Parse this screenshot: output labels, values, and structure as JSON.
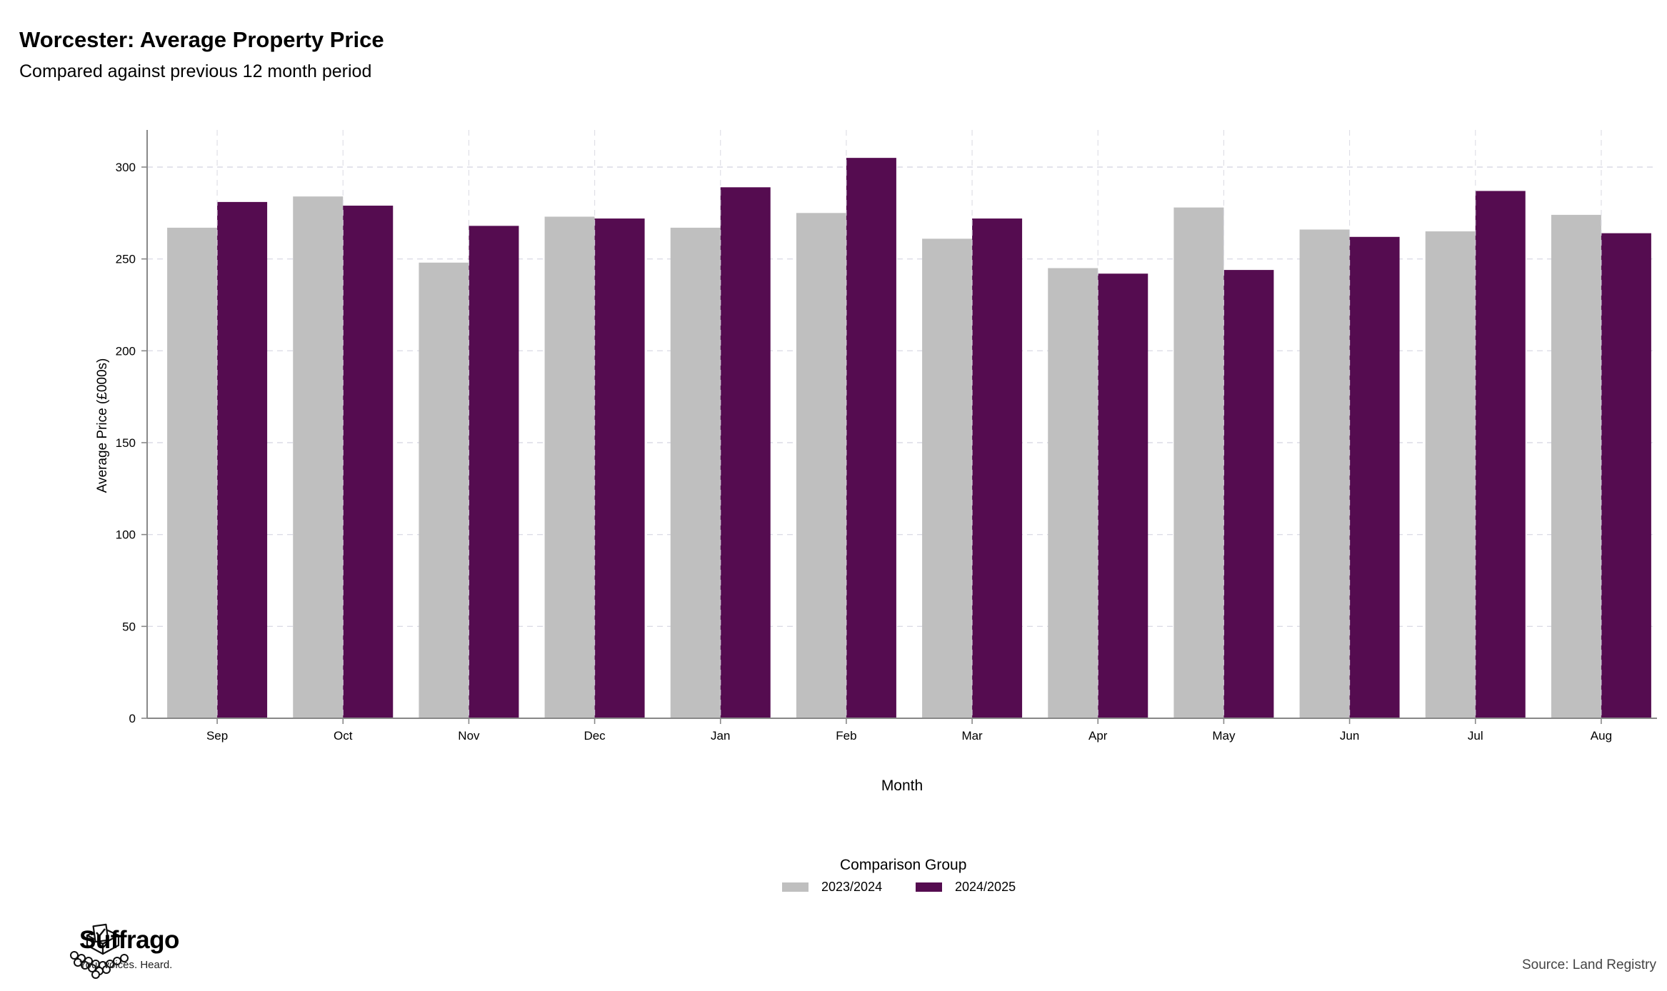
{
  "header": {
    "title": "Worcester: Average Property Price",
    "subtitle": "Compared against previous 12 month period"
  },
  "chart_data": {
    "type": "bar",
    "title": "Worcester: Average Property Price",
    "subtitle": "Compared against previous 12 month period",
    "xlabel": "Month",
    "ylabel": "Average Price (£000s)",
    "categories": [
      "Sep",
      "Oct",
      "Nov",
      "Dec",
      "Jan",
      "Feb",
      "Mar",
      "Apr",
      "May",
      "Jun",
      "Jul",
      "Aug"
    ],
    "series": [
      {
        "name": "2023/2024",
        "color": "#bfbfbf",
        "values": [
          267,
          284,
          248,
          273,
          267,
          275,
          261,
          245,
          278,
          266,
          265,
          274
        ]
      },
      {
        "name": "2024/2025",
        "color": "#550c50",
        "values": [
          281,
          279,
          268,
          272,
          289,
          305,
          272,
          242,
          244,
          262,
          287,
          264
        ]
      }
    ],
    "ylim": [
      0,
      320
    ],
    "yticks": [
      0,
      50,
      100,
      150,
      200,
      250,
      300
    ],
    "grid": true,
    "legend": {
      "title": "Comparison Group",
      "position": "bottom"
    }
  },
  "footer": {
    "brand_name": "Suffrago",
    "brand_tagline": "Your voices. Heard.",
    "source": "Source: Land Registry"
  }
}
